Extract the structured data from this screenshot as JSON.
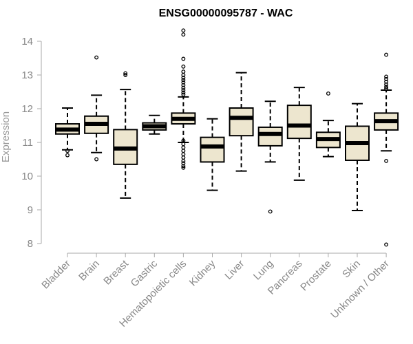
{
  "chart_data": {
    "type": "boxplot",
    "title": "ENSG00000095787 - WAC",
    "xlabel": "",
    "ylabel": "Expression",
    "ylim": [
      7.9,
      14.4
    ],
    "yticks": [
      8,
      9,
      10,
      11,
      12,
      13,
      14
    ],
    "box_fill": "#ede6cf",
    "median_color": "#000000",
    "categories": [
      "Bladder",
      "Brain",
      "Breast",
      "Gastric",
      "Hematopoietic cells",
      "Kidney",
      "Liver",
      "Lung",
      "Pancreas",
      "Prostate",
      "Skin",
      "Unknown / Other"
    ],
    "boxes": [
      {
        "whisker_low": 10.78,
        "q1": 11.25,
        "median": 11.38,
        "q3": 11.55,
        "whisker_high": 12.02,
        "outliers": [
          10.62,
          10.75
        ]
      },
      {
        "whisker_low": 10.7,
        "q1": 11.27,
        "median": 11.55,
        "q3": 11.78,
        "whisker_high": 12.4,
        "outliers": [
          10.5,
          13.52
        ]
      },
      {
        "whisker_low": 9.35,
        "q1": 10.35,
        "median": 10.82,
        "q3": 11.38,
        "whisker_high": 12.57,
        "outliers": [
          13.0,
          13.05
        ]
      },
      {
        "whisker_low": 11.25,
        "q1": 11.37,
        "median": 11.48,
        "q3": 11.58,
        "whisker_high": 11.8,
        "outliers": []
      },
      {
        "whisker_low": 11.0,
        "q1": 11.55,
        "median": 11.7,
        "q3": 11.87,
        "whisker_high": 12.35,
        "outliers": [
          10.25,
          10.3,
          10.38,
          10.45,
          10.55,
          10.65,
          10.75,
          10.85,
          10.95,
          11.05,
          12.42,
          12.48,
          12.55,
          12.62,
          12.7,
          12.78,
          12.85,
          12.92,
          13.0,
          13.1,
          13.25,
          13.48,
          14.2,
          14.32
        ]
      },
      {
        "whisker_low": 9.58,
        "q1": 10.42,
        "median": 10.88,
        "q3": 11.15,
        "whisker_high": 11.7,
        "outliers": []
      },
      {
        "whisker_low": 10.15,
        "q1": 11.2,
        "median": 11.73,
        "q3": 12.02,
        "whisker_high": 13.07,
        "outliers": []
      },
      {
        "whisker_low": 10.42,
        "q1": 10.9,
        "median": 11.25,
        "q3": 11.45,
        "whisker_high": 12.22,
        "outliers": [
          8.95
        ]
      },
      {
        "whisker_low": 9.88,
        "q1": 11.12,
        "median": 11.5,
        "q3": 12.1,
        "whisker_high": 12.63,
        "outliers": []
      },
      {
        "whisker_low": 10.58,
        "q1": 10.85,
        "median": 11.1,
        "q3": 11.3,
        "whisker_high": 11.65,
        "outliers": [
          12.45
        ]
      },
      {
        "whisker_low": 8.98,
        "q1": 10.47,
        "median": 10.98,
        "q3": 11.48,
        "whisker_high": 12.15,
        "outliers": []
      },
      {
        "whisker_low": 10.75,
        "q1": 11.37,
        "median": 11.63,
        "q3": 11.87,
        "whisker_high": 12.55,
        "outliers": [
          7.97,
          10.45,
          12.6,
          12.65,
          12.72,
          12.8,
          12.88,
          12.95,
          13.6
        ]
      }
    ]
  }
}
